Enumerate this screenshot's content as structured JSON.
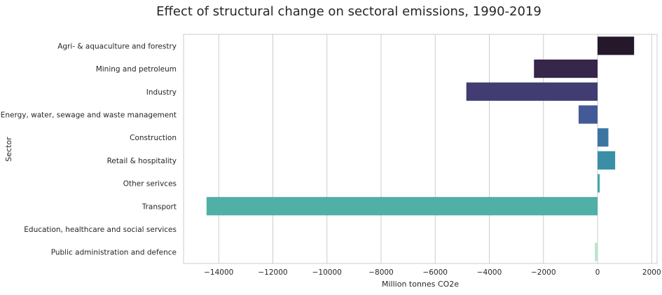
{
  "chart_data": {
    "type": "bar",
    "orientation": "horizontal",
    "title": "Effect of structural change on sectoral emissions, 1990-2019",
    "xlabel": "Million tonnes CO2e",
    "ylabel": "Sector",
    "categories": [
      "Agri- & aquaculture and forestry",
      "Mining and petroleum",
      "Industry",
      "Energy, water, sewage and waste management",
      "Construction",
      "Retail & hospitality",
      "Other serivces",
      "Transport",
      "Education, healthcare and social services",
      "Public administration and defence"
    ],
    "values": [
      1350,
      -2350,
      -4850,
      -700,
      400,
      650,
      80,
      -14450,
      0,
      -100
    ],
    "colors": [
      "#25182b",
      "#36264a",
      "#413d72",
      "#445a97",
      "#3c75a2",
      "#3a8fa5",
      "#3fa9a9",
      "#50b0a5",
      "#8ccfb5",
      "#b9e3cc"
    ],
    "xlim": [
      -15300,
      2200
    ],
    "xticks": [
      -14000,
      -12000,
      -10000,
      -8000,
      -6000,
      -4000,
      -2000,
      0,
      2000
    ],
    "xtick_labels": [
      "−14000",
      "−12000",
      "−10000",
      "−8000",
      "−6000",
      "−4000",
      "−2000",
      "0",
      "2000"
    ],
    "grid": true
  }
}
